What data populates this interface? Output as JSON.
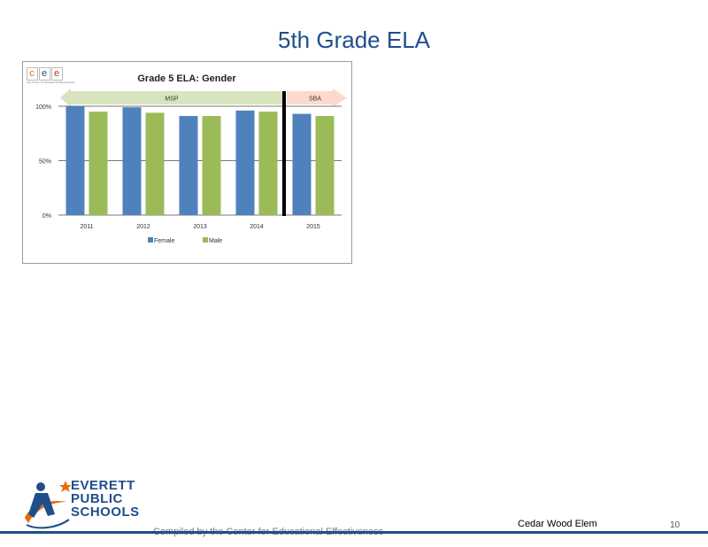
{
  "slide": {
    "title": "5th Grade ELA"
  },
  "chart_data": {
    "type": "bar",
    "title": "Grade 5 ELA: Gender",
    "categories": [
      "2011",
      "2012",
      "2013",
      "2014",
      "2015"
    ],
    "series": [
      {
        "name": "Female",
        "values": [
          100,
          99,
          91,
          96,
          93
        ],
        "color": "#4f81bd"
      },
      {
        "name": "Male",
        "values": [
          95,
          94,
          91,
          95,
          91
        ],
        "color": "#9bbb59"
      }
    ],
    "yticks": [
      "0%",
      "50%",
      "100%"
    ],
    "ylim": [
      0,
      100
    ],
    "periods": [
      {
        "label": "MSP",
        "from": "2011",
        "to": "2014",
        "color": "#d7e4bd"
      },
      {
        "label": "SBA",
        "from": "2015",
        "to": "2015",
        "color": "#fbd9cc"
      }
    ],
    "legend": "bottom",
    "grid": true
  },
  "chart_logo": {
    "letters": [
      "c",
      "e",
      "e"
    ],
    "caption": "The Center for Educational Effectiveness"
  },
  "footer": {
    "logo_lines": [
      "EVERETT",
      "PUBLIC",
      "SCHOOLS"
    ],
    "compiled": "Compiled by the Center for Educational Effectiveness",
    "school": "Cedar Wood Elem",
    "page": "10"
  }
}
